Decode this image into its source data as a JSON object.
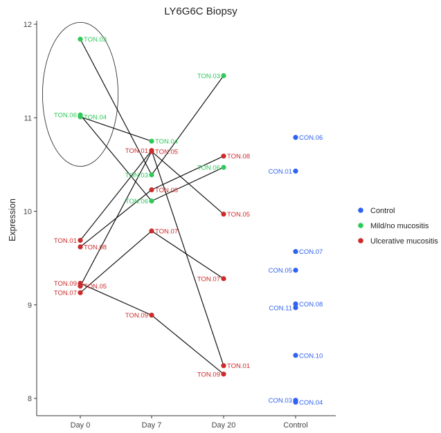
{
  "chart_data": {
    "type": "scatter",
    "title": "LY6G6C Biopsy",
    "xlabel": "",
    "ylabel": "Expression",
    "categories": [
      "Day 0",
      "Day 7",
      "Day 20",
      "Control"
    ],
    "ylim": [
      7.85,
      12.1
    ],
    "yticks": [
      "8",
      "9",
      "10",
      "11",
      "12"
    ],
    "grid": false,
    "legend_position": "right",
    "series": [
      {
        "name": "Control",
        "color": "#2f62f0"
      },
      {
        "name": "Mild/no mucositis",
        "color": "#2fc95a"
      },
      {
        "name": "Ulcerative mucositis",
        "color": "#cc2b2b"
      }
    ],
    "points": [
      {
        "id": "d0-ton03",
        "label": "TON.03",
        "x": "Day 0",
        "y": 11.84,
        "group": "Mild/no mucositis",
        "side": "right"
      },
      {
        "id": "d0-ton06",
        "label": "TON.06",
        "x": "Day 0",
        "y": 11.03,
        "group": "Mild/no mucositis",
        "side": "left"
      },
      {
        "id": "d0-ton04",
        "label": "TON.04",
        "x": "Day 0",
        "y": 11.01,
        "group": "Mild/no mucositis",
        "side": "right"
      },
      {
        "id": "d0-ton01",
        "label": "TON.01",
        "x": "Day 0",
        "y": 9.69,
        "group": "Ulcerative mucositis",
        "side": "left"
      },
      {
        "id": "d0-ton08",
        "label": "TON.08",
        "x": "Day 0",
        "y": 9.62,
        "group": "Ulcerative mucositis",
        "side": "right"
      },
      {
        "id": "d0-ton09",
        "label": "TON.09",
        "x": "Day 0",
        "y": 9.23,
        "group": "Ulcerative mucositis",
        "side": "left"
      },
      {
        "id": "d0-ton05",
        "label": "TON.05",
        "x": "Day 0",
        "y": 9.2,
        "group": "Ulcerative mucositis",
        "side": "right"
      },
      {
        "id": "d0-ton07",
        "label": "TON.07",
        "x": "Day 0",
        "y": 9.13,
        "group": "Ulcerative mucositis",
        "side": "left"
      },
      {
        "id": "d7-ton04",
        "label": "TON.04",
        "x": "Day 7",
        "y": 10.75,
        "group": "Mild/no mucositis",
        "side": "right"
      },
      {
        "id": "d7-ton01",
        "label": "TON.01",
        "x": "Day 7",
        "y": 10.65,
        "group": "Ulcerative mucositis",
        "side": "left"
      },
      {
        "id": "d7-ton05",
        "label": "TON.05",
        "x": "Day 7",
        "y": 10.64,
        "group": "Ulcerative mucositis",
        "side": "right"
      },
      {
        "id": "d7-ton03",
        "label": "TON.03",
        "x": "Day 7",
        "y": 10.39,
        "group": "Mild/no mucositis",
        "side": "left"
      },
      {
        "id": "d7-ton08",
        "label": "TON.08",
        "x": "Day 7",
        "y": 10.23,
        "group": "Ulcerative mucositis",
        "side": "right"
      },
      {
        "id": "d7-ton06",
        "label": "TON.06",
        "x": "Day 7",
        "y": 10.11,
        "group": "Mild/no mucositis",
        "side": "left"
      },
      {
        "id": "d7-ton07",
        "label": "TON.07",
        "x": "Day 7",
        "y": 9.79,
        "group": "Ulcerative mucositis",
        "side": "right"
      },
      {
        "id": "d7-ton09",
        "label": "TON.09",
        "x": "Day 7",
        "y": 8.89,
        "group": "Ulcerative mucositis",
        "side": "left"
      },
      {
        "id": "d20-ton03",
        "label": "TON.03",
        "x": "Day 20",
        "y": 11.45,
        "group": "Mild/no mucositis",
        "side": "left"
      },
      {
        "id": "d20-ton08",
        "label": "TON.08",
        "x": "Day 20",
        "y": 10.59,
        "group": "Ulcerative mucositis",
        "side": "right"
      },
      {
        "id": "d20-ton06",
        "label": "TON.06",
        "x": "Day 20",
        "y": 10.47,
        "group": "Mild/no mucositis",
        "side": "left"
      },
      {
        "id": "d20-ton05",
        "label": "TON.05",
        "x": "Day 20",
        "y": 9.97,
        "group": "Ulcerative mucositis",
        "side": "right"
      },
      {
        "id": "d20-ton07",
        "label": "TON.07",
        "x": "Day 20",
        "y": 9.28,
        "group": "Ulcerative mucositis",
        "side": "left"
      },
      {
        "id": "d20-ton01",
        "label": "TON.01",
        "x": "Day 20",
        "y": 8.35,
        "group": "Ulcerative mucositis",
        "side": "right"
      },
      {
        "id": "d20-ton09",
        "label": "TON.09",
        "x": "Day 20",
        "y": 8.26,
        "group": "Ulcerative mucositis",
        "side": "left"
      },
      {
        "id": "ctl-con06",
        "label": "CON.06",
        "x": "Control",
        "y": 10.79,
        "group": "Control",
        "side": "right"
      },
      {
        "id": "ctl-con01",
        "label": "CON.01",
        "x": "Control",
        "y": 10.43,
        "group": "Control",
        "side": "left"
      },
      {
        "id": "ctl-con07",
        "label": "CON.07",
        "x": "Control",
        "y": 9.57,
        "group": "Control",
        "side": "right"
      },
      {
        "id": "ctl-con05",
        "label": "CON.05",
        "x": "Control",
        "y": 9.37,
        "group": "Control",
        "side": "left"
      },
      {
        "id": "ctl-con08",
        "label": "CON.08",
        "x": "Control",
        "y": 9.01,
        "group": "Control",
        "side": "right"
      },
      {
        "id": "ctl-con11",
        "label": "CON.11",
        "x": "Control",
        "y": 8.97,
        "group": "Control",
        "side": "left"
      },
      {
        "id": "ctl-con10",
        "label": "CON.10",
        "x": "Control",
        "y": 8.46,
        "group": "Control",
        "side": "right"
      },
      {
        "id": "ctl-con03",
        "label": "CON.03",
        "x": "Control",
        "y": 7.98,
        "group": "Control",
        "side": "left"
      },
      {
        "id": "ctl-con04",
        "label": "CON.04",
        "x": "Control",
        "y": 7.96,
        "group": "Control",
        "side": "right"
      }
    ],
    "segments": [
      [
        "d0-ton03",
        "d7-ton03"
      ],
      [
        "d0-ton06",
        "d7-ton06"
      ],
      [
        "d0-ton04",
        "d7-ton04"
      ],
      [
        "d0-ton01",
        "d7-ton01"
      ],
      [
        "d0-ton08",
        "d7-ton08"
      ],
      [
        "d0-ton09",
        "d7-ton09"
      ],
      [
        "d0-ton05",
        "d7-ton05"
      ],
      [
        "d0-ton07",
        "d7-ton07"
      ],
      [
        "d7-ton03",
        "d20-ton03"
      ],
      [
        "d7-ton06",
        "d20-ton06"
      ],
      [
        "d7-ton01",
        "d20-ton01"
      ],
      [
        "d7-ton05",
        "d20-ton05"
      ],
      [
        "d7-ton08",
        "d20-ton08"
      ],
      [
        "d7-ton07",
        "d20-ton07"
      ],
      [
        "d7-ton09",
        "d20-ton09"
      ]
    ],
    "annotations": [
      {
        "type": "ellipse",
        "x": "Day 0",
        "y_range": [
          10.48,
          12.02
        ],
        "x_extent": 0.53
      }
    ]
  }
}
